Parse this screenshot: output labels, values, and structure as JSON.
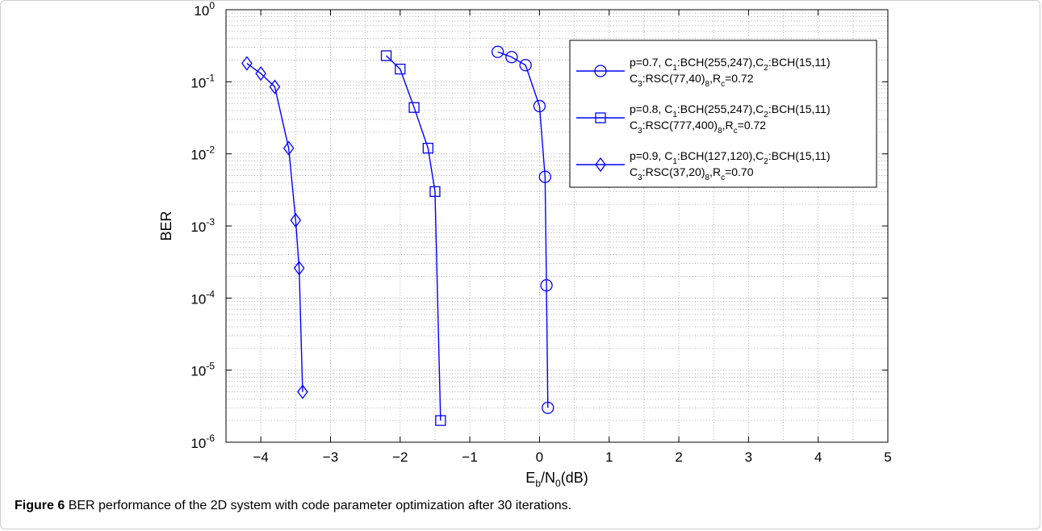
{
  "caption": {
    "label": "Figure 6",
    "text": "BER performance of the 2D system with code parameter optimization after 30 iterations."
  },
  "chart_data": {
    "type": "line",
    "xlabel": "E_b/N_0(dB)",
    "ylabel": "BER",
    "xlim": [
      -4.5,
      5
    ],
    "ylim": [
      1e-06,
      1
    ],
    "yscale": "log",
    "grid": true,
    "legend_position": "top-right",
    "xticks": [
      -4,
      -3,
      -2,
      -1,
      0,
      1,
      2,
      3,
      4,
      5
    ],
    "yticks": [
      1e-06,
      1e-05,
      0.0001,
      0.001,
      0.01,
      0.1,
      1
    ],
    "line_color": "#0000ff",
    "series": [
      {
        "legend_line1": "p=0.7, C_1:BCH(255,247),C_2:BCH(15,11)",
        "legend_line2": "C_3:RSC(77,40)_8,R_c=0.72",
        "marker": "circle",
        "x": [
          -0.6,
          -0.4,
          -0.2,
          0.0,
          0.08,
          0.1,
          0.12
        ],
        "y": [
          0.26,
          0.22,
          0.17,
          0.046,
          0.0048,
          0.00015,
          3e-06
        ]
      },
      {
        "legend_line1": "p=0.8, C_1:BCH(255,247),C_2:BCH(15,11)",
        "legend_line2": "C_3:RSC(777,400)_8,R_c=0.72",
        "marker": "square",
        "x": [
          -2.2,
          -2.0,
          -1.8,
          -1.6,
          -1.5,
          -1.42
        ],
        "y": [
          0.23,
          0.15,
          0.044,
          0.012,
          0.003,
          2e-06
        ]
      },
      {
        "legend_line1": "p=0.9, C_1:BCH(127,120),C_2:BCH(15,11)",
        "legend_line2": "C_3:RSC(37,20)_8,R_c=0.70",
        "marker": "diamond",
        "x": [
          -4.2,
          -4.0,
          -3.8,
          -3.6,
          -3.5,
          -3.45,
          -3.4
        ],
        "y": [
          0.18,
          0.13,
          0.085,
          0.012,
          0.0012,
          0.00026,
          5e-06
        ]
      }
    ]
  }
}
